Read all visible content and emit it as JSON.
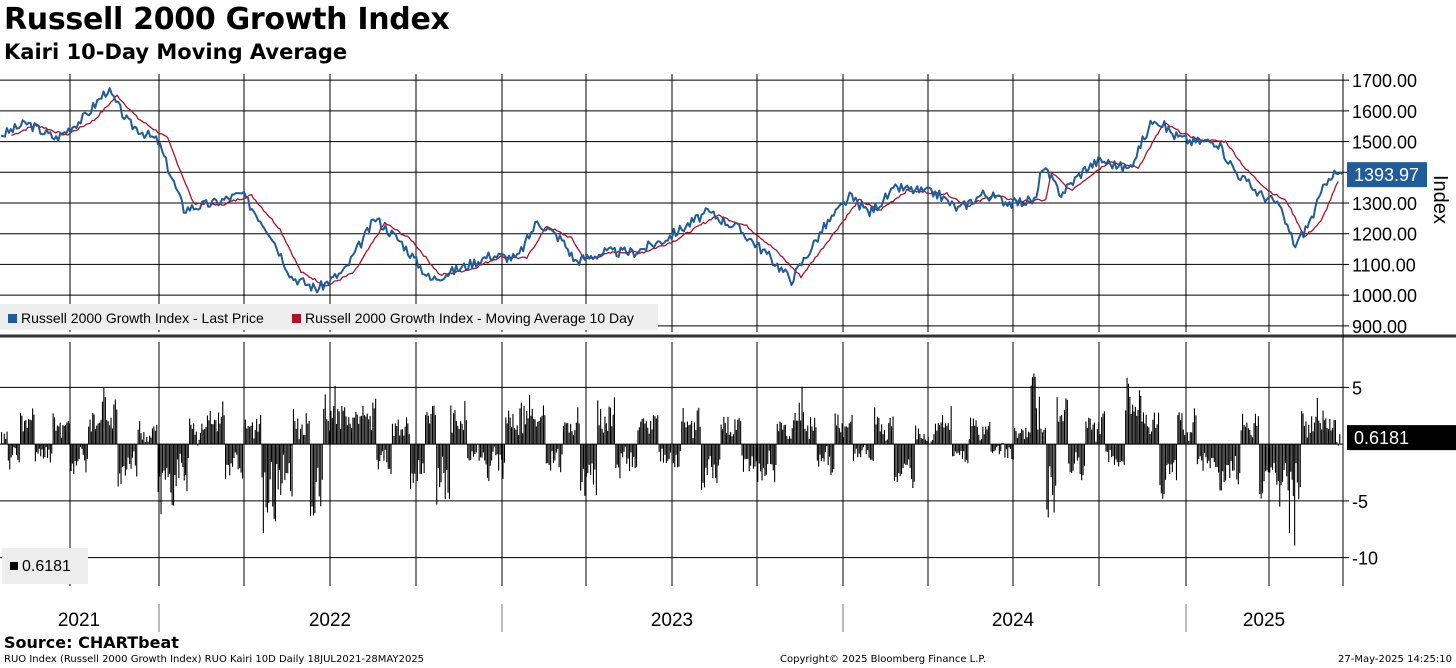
{
  "title": "Russell 2000 Growth Index",
  "subtitle": "Kairi 10-Day Moving Average",
  "source": "Source: CHARTbeat",
  "footer": {
    "left": "RUO Index (Russell 2000 Growth Index) RUO Kairi 10D  Daily 18JUL2021-28MAY2025",
    "center": "Copyright© 2025 Bloomberg Finance L.P.",
    "right": "27-May-2025 14:25:10"
  },
  "colors": {
    "price": "#1f5c99",
    "ma": "#b0102a",
    "kairi": "#000000",
    "grid": "#000000"
  },
  "chart_data": [
    {
      "type": "line",
      "axis_label": "Index",
      "ylim": [
        880,
        1720
      ],
      "y_ticks": [
        "1700.00",
        "1600.00",
        "1500.00",
        "1400.00",
        "1300.00",
        "1200.00",
        "1100.00",
        "1000.00",
        "900.00"
      ],
      "y_tick_values": [
        1700,
        1600,
        1500,
        1400,
        1300,
        1200,
        1100,
        1000,
        900
      ],
      "last_value_label": "1393.97",
      "legend": [
        "Russell 2000 Growth Index - Last Price",
        "Russell 2000 Growth Index - Moving Average 10 Day"
      ],
      "legend_position": "bottom-left",
      "grid": true,
      "x_range": [
        "2021-07-18",
        "2025-05-28"
      ],
      "series": [
        {
          "name": "Russell 2000 Growth Index - Last Price",
          "x": [
            "2021-07-19",
            "2021-08-15",
            "2021-09-15",
            "2021-10-15",
            "2021-11-08",
            "2021-11-30",
            "2021-12-31",
            "2022-01-27",
            "2022-02-28",
            "2022-03-29",
            "2022-04-28",
            "2022-05-20",
            "2022-06-16",
            "2022-07-15",
            "2022-08-16",
            "2022-09-13",
            "2022-10-13",
            "2022-11-15",
            "2022-12-15",
            "2023-01-12",
            "2023-02-02",
            "2023-02-28",
            "2023-03-14",
            "2023-04-14",
            "2023-05-15",
            "2023-06-15",
            "2023-07-31",
            "2023-08-31",
            "2023-09-29",
            "2023-10-27",
            "2023-11-30",
            "2023-12-27",
            "2024-01-17",
            "2024-02-15",
            "2024-03-28",
            "2024-04-19",
            "2024-05-15",
            "2024-06-14",
            "2024-07-10",
            "2024-07-16",
            "2024-08-05",
            "2024-08-30",
            "2024-09-15",
            "2024-10-15",
            "2024-11-11",
            "2024-12-02",
            "2024-12-20",
            "2025-01-15",
            "2025-02-05",
            "2025-03-01",
            "2025-03-20",
            "2025-04-08",
            "2025-04-25",
            "2025-05-13",
            "2025-05-27"
          ],
          "values": [
            1520,
            1560,
            1510,
            1580,
            1670,
            1560,
            1500,
            1280,
            1300,
            1330,
            1200,
            1060,
            1020,
            1080,
            1250,
            1170,
            1050,
            1090,
            1130,
            1120,
            1240,
            1180,
            1110,
            1140,
            1140,
            1180,
            1270,
            1220,
            1140,
            1050,
            1220,
            1320,
            1270,
            1350,
            1330,
            1280,
            1330,
            1300,
            1310,
            1420,
            1330,
            1410,
            1440,
            1410,
            1580,
            1520,
            1500,
            1500,
            1400,
            1330,
            1300,
            1160,
            1250,
            1390,
            1394
          ]
        },
        {
          "name": "Russell 2000 Growth Index - Moving Average 10 Day",
          "x": [
            "2021-07-30",
            "2021-08-25",
            "2021-09-25",
            "2021-10-25",
            "2021-11-18",
            "2021-12-10",
            "2022-01-10",
            "2022-02-06",
            "2022-03-08",
            "2022-04-08",
            "2022-05-08",
            "2022-05-30",
            "2022-06-26",
            "2022-07-25",
            "2022-08-26",
            "2022-09-23",
            "2022-10-23",
            "2022-11-25",
            "2022-12-25",
            "2023-01-22",
            "2023-02-12",
            "2023-03-10",
            "2023-03-24",
            "2023-04-24",
            "2023-05-25",
            "2023-06-25",
            "2023-08-10",
            "2023-09-10",
            "2023-10-09",
            "2023-11-06",
            "2023-12-10",
            "2024-01-06",
            "2024-01-27",
            "2024-02-25",
            "2024-04-07",
            "2024-04-29",
            "2024-05-25",
            "2024-06-24",
            "2024-07-20",
            "2024-07-26",
            "2024-08-15",
            "2024-09-09",
            "2024-09-25",
            "2024-10-25",
            "2024-11-21",
            "2024-12-12",
            "2024-12-30",
            "2025-01-25",
            "2025-02-15",
            "2025-03-11",
            "2025-03-30",
            "2025-04-18",
            "2025-05-05",
            "2025-05-23"
          ],
          "values": [
            1520,
            1555,
            1520,
            1570,
            1650,
            1575,
            1510,
            1300,
            1295,
            1325,
            1215,
            1075,
            1030,
            1075,
            1235,
            1180,
            1065,
            1085,
            1125,
            1120,
            1225,
            1185,
            1115,
            1140,
            1140,
            1175,
            1260,
            1225,
            1150,
            1060,
            1200,
            1310,
            1275,
            1340,
            1330,
            1290,
            1325,
            1305,
            1310,
            1400,
            1340,
            1400,
            1435,
            1415,
            1560,
            1525,
            1505,
            1500,
            1410,
            1340,
            1305,
            1190,
            1240,
            1370
          ]
        }
      ]
    },
    {
      "type": "bar",
      "ylim": [
        -12.5,
        9
      ],
      "y_ticks": [
        "5",
        "-5",
        "-10"
      ],
      "y_tick_values": [
        5,
        -5,
        -10
      ],
      "last_value_label": "0.6181",
      "legend": [
        "0.6181"
      ],
      "legend_position": "bottom-left",
      "grid": true,
      "series": [
        {
          "name": "0.6181",
          "x": [
            "2021-07-19",
            "2021-08-01",
            "2021-08-15",
            "2021-09-01",
            "2021-09-20",
            "2021-10-10",
            "2021-10-27",
            "2021-11-08",
            "2021-11-29",
            "2021-12-20",
            "2022-01-10",
            "2022-01-24",
            "2022-02-10",
            "2022-03-01",
            "2022-03-20",
            "2022-04-10",
            "2022-04-27",
            "2022-05-11",
            "2022-06-01",
            "2022-06-16",
            "2022-06-27",
            "2022-07-20",
            "2022-08-10",
            "2022-08-23",
            "2022-09-13",
            "2022-09-30",
            "2022-10-13",
            "2022-10-25",
            "2022-11-10",
            "2022-12-01",
            "2022-12-20",
            "2023-01-10",
            "2023-02-02",
            "2023-02-20",
            "2023-03-10",
            "2023-03-28",
            "2023-04-15",
            "2023-05-05",
            "2023-05-30",
            "2023-06-20",
            "2023-07-15",
            "2023-08-02",
            "2023-08-25",
            "2023-09-15",
            "2023-10-03",
            "2023-10-20",
            "2023-11-02",
            "2023-11-14",
            "2023-12-01",
            "2023-12-20",
            "2024-01-10",
            "2024-02-01",
            "2024-02-22",
            "2024-03-15",
            "2024-04-05",
            "2024-04-20",
            "2024-05-10",
            "2024-06-05",
            "2024-06-27",
            "2024-07-11",
            "2024-07-16",
            "2024-07-25",
            "2024-08-05",
            "2024-08-20",
            "2024-09-10",
            "2024-10-01",
            "2024-10-20",
            "2024-11-06",
            "2024-11-25",
            "2024-12-15",
            "2025-01-05",
            "2025-01-30",
            "2025-02-20",
            "2025-03-10",
            "2025-03-28",
            "2025-04-04",
            "2025-04-08",
            "2025-04-20",
            "2025-05-05",
            "2025-05-15",
            "2025-05-27"
          ],
          "values": [
            1.5,
            -2.5,
            3.5,
            -1.5,
            2.8,
            -3,
            3.8,
            5.5,
            -3.5,
            1.8,
            -6.5,
            -4.5,
            2.5,
            4.2,
            -3.5,
            2.8,
            -8.5,
            -5,
            3.2,
            -8,
            5.5,
            3.8,
            4.8,
            -2.5,
            2.8,
            -4.5,
            5.2,
            -7,
            4.5,
            -2,
            -3,
            3.8,
            4.2,
            -2.5,
            3.5,
            -5.5,
            4.5,
            -2.8,
            3.2,
            -1.8,
            3.8,
            -4.2,
            2.8,
            -3.2,
            -4,
            2.5,
            5.5,
            3,
            -2.5,
            3.2,
            -2,
            3.2,
            -3.8,
            1.5,
            3.2,
            -1.8,
            2.5,
            -1.2,
            1.5,
            7.5,
            2,
            -7,
            4.5,
            -3.5,
            3.5,
            -2.5,
            6.5,
            3.2,
            -4.8,
            3,
            -2.5,
            -4.5,
            2.8,
            -5,
            -5.8,
            -9.8,
            -9.5,
            3.2,
            4.5,
            3.2,
            0.6181
          ]
        }
      ]
    }
  ],
  "x_axis": {
    "labels": [
      "2021",
      "2022",
      "2023",
      "2024",
      "2025"
    ]
  }
}
